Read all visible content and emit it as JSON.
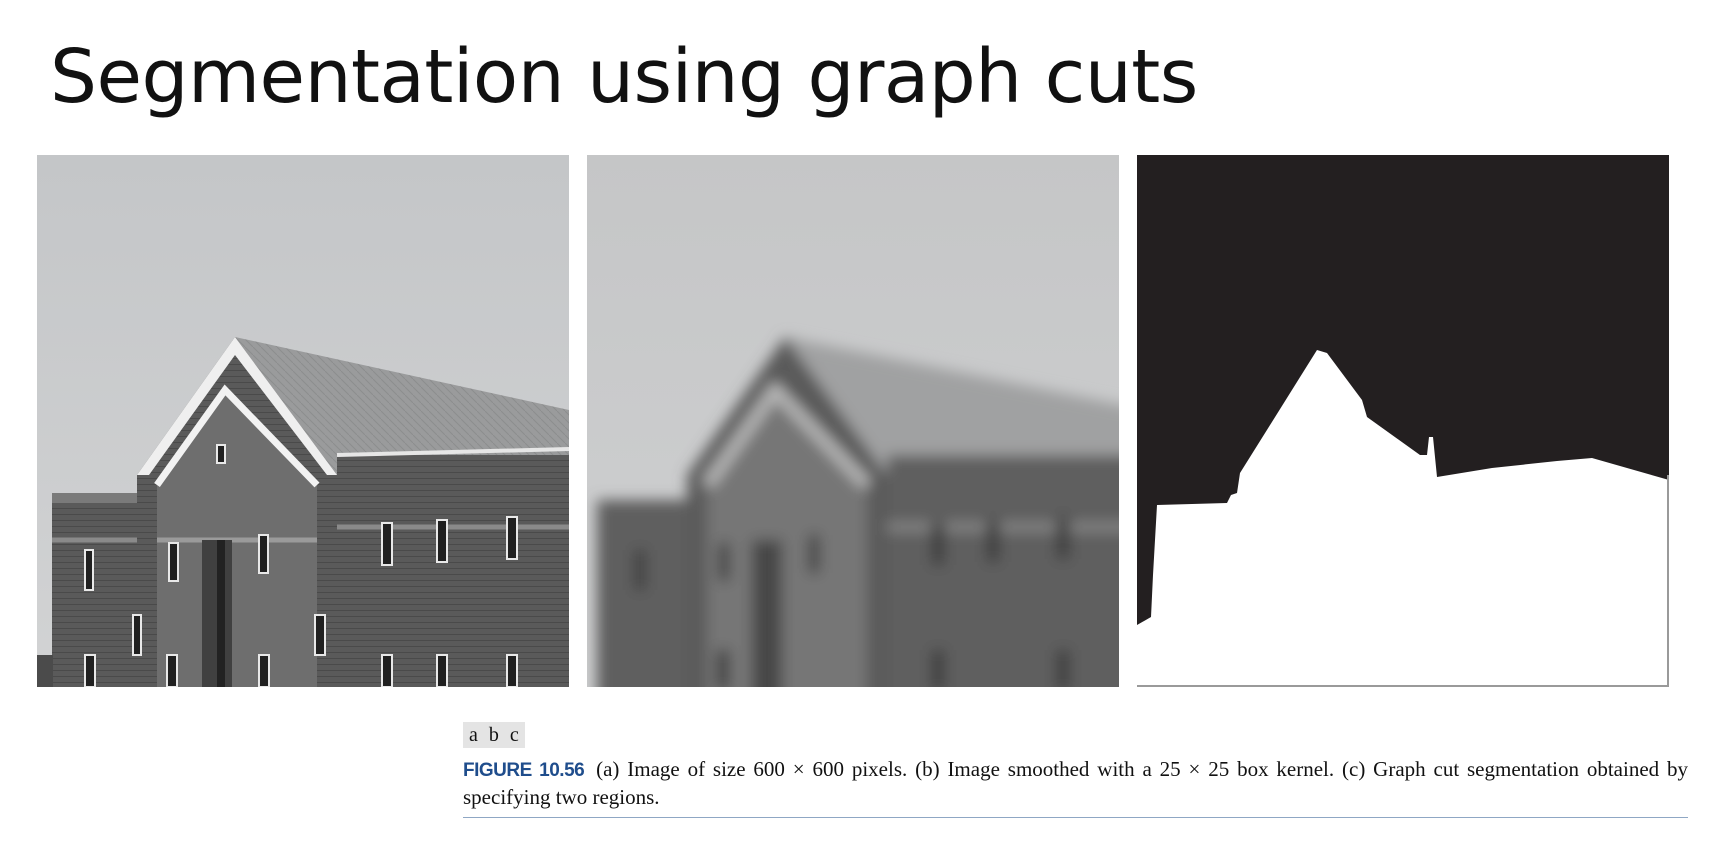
{
  "slide": {
    "title": "Segmentation using graph cuts"
  },
  "figure": {
    "panel_tags": [
      "a",
      "b",
      "c"
    ],
    "label": "FIGURE 10.56",
    "caption": "(a) Image of size 600 × 600 pixels. (b) Image smoothed with a 25 × 25 box kernel. (c) Graph cut segmentation obtained by specifying two regions.",
    "panels": [
      {
        "id": "a",
        "depicts": "building-photo"
      },
      {
        "id": "b",
        "depicts": "blurred-building-photo"
      },
      {
        "id": "c",
        "depicts": "binary-segmentation-mask"
      }
    ]
  }
}
